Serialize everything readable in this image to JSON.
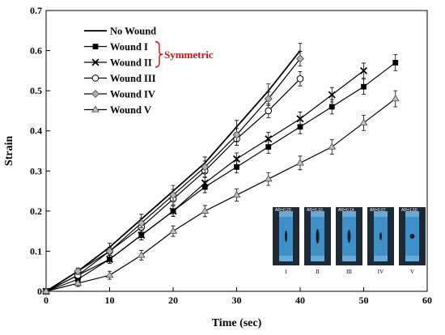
{
  "chart_data": {
    "type": "line",
    "title": "",
    "xlabel": "Time (sec)",
    "ylabel": "Strain",
    "xlim": [
      0,
      60
    ],
    "ylim": [
      0,
      0.7
    ],
    "xticks": [
      0,
      10,
      20,
      30,
      40,
      50,
      60
    ],
    "yticks": [
      0,
      0.1,
      0.2,
      0.3,
      0.4,
      0.5,
      0.6,
      0.7
    ],
    "grid": false,
    "legend_position": "top-left",
    "annotation": {
      "text": "Symmetric",
      "color": "#d11111",
      "groups": [
        "Wound I",
        "Wound II"
      ]
    },
    "series": [
      {
        "name": "No Wound",
        "marker": "none",
        "x": [
          0,
          5,
          10,
          15,
          20,
          25,
          30,
          35,
          40
        ],
        "y": [
          0,
          0.05,
          0.11,
          0.18,
          0.25,
          0.32,
          0.41,
          0.5,
          0.6
        ],
        "err": [
          0.005,
          0.008,
          0.01,
          0.012,
          0.014,
          0.015,
          0.016,
          0.017,
          0.018
        ]
      },
      {
        "name": "Wound I",
        "marker": "square",
        "x": [
          0,
          5,
          10,
          15,
          20,
          25,
          30,
          35,
          40,
          45,
          50,
          55
        ],
        "y": [
          0,
          0.03,
          0.08,
          0.14,
          0.2,
          0.26,
          0.31,
          0.36,
          0.41,
          0.46,
          0.51,
          0.57
        ],
        "err": [
          0.005,
          0.008,
          0.01,
          0.012,
          0.013,
          0.014,
          0.015,
          0.016,
          0.017,
          0.018,
          0.019,
          0.02
        ]
      },
      {
        "name": "Wound II",
        "marker": "x",
        "x": [
          0,
          5,
          10,
          15,
          20,
          25,
          30,
          35,
          40,
          45,
          50
        ],
        "y": [
          0,
          0.04,
          0.08,
          0.14,
          0.2,
          0.27,
          0.33,
          0.38,
          0.43,
          0.49,
          0.55
        ],
        "err": [
          0.005,
          0.008,
          0.01,
          0.012,
          0.013,
          0.014,
          0.015,
          0.016,
          0.017,
          0.018,
          0.019
        ]
      },
      {
        "name": "Wound III",
        "marker": "circle-open",
        "x": [
          0,
          5,
          10,
          15,
          20,
          25,
          30,
          35,
          40
        ],
        "y": [
          0,
          0.04,
          0.1,
          0.16,
          0.23,
          0.3,
          0.38,
          0.45,
          0.53
        ],
        "err": [
          0.005,
          0.008,
          0.01,
          0.012,
          0.014,
          0.015,
          0.016,
          0.017,
          0.018
        ]
      },
      {
        "name": "Wound IV",
        "marker": "diamond",
        "x": [
          0,
          5,
          10,
          15,
          20,
          25,
          30,
          35,
          40
        ],
        "y": [
          0,
          0.05,
          0.1,
          0.17,
          0.24,
          0.31,
          0.39,
          0.48,
          0.58
        ],
        "err": [
          0.005,
          0.008,
          0.01,
          0.012,
          0.014,
          0.015,
          0.016,
          0.017,
          0.018
        ]
      },
      {
        "name": "Wound V",
        "marker": "triangle",
        "x": [
          0,
          5,
          10,
          15,
          20,
          25,
          30,
          35,
          40,
          45,
          50,
          55
        ],
        "y": [
          0,
          0.02,
          0.04,
          0.09,
          0.15,
          0.2,
          0.24,
          0.28,
          0.32,
          0.36,
          0.42,
          0.48
        ],
        "err": [
          0.005,
          0.008,
          0.01,
          0.012,
          0.013,
          0.014,
          0.015,
          0.016,
          0.017,
          0.018,
          0.019,
          0.02
        ]
      }
    ],
    "inset": {
      "panels": [
        {
          "label": "I",
          "ar": "AR=0.20"
        },
        {
          "label": "II",
          "ar": "AR=0.10"
        },
        {
          "label": "III",
          "ar": "AR=0.14"
        },
        {
          "label": "IV",
          "ar": "AR=0.07"
        },
        {
          "label": "V",
          "ar": "AR=1.50"
        }
      ]
    }
  }
}
